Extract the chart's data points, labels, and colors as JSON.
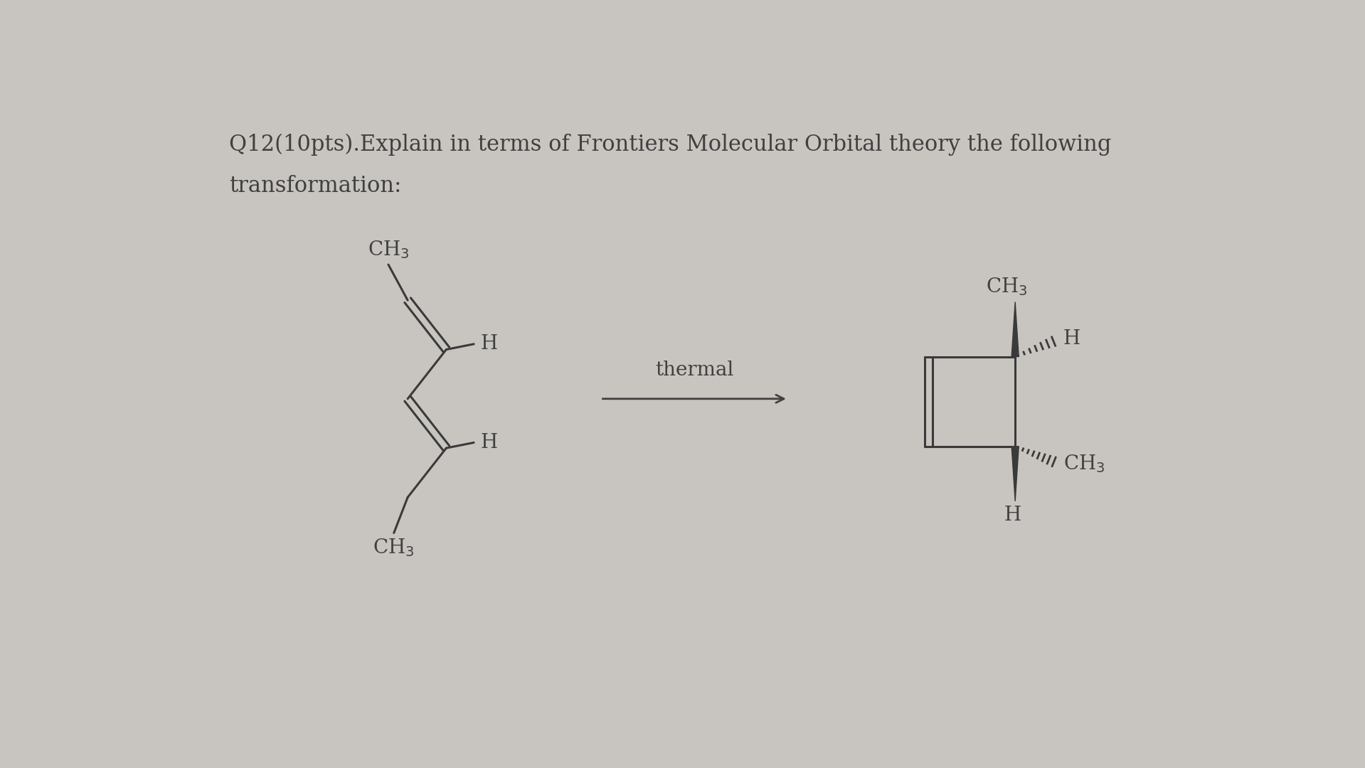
{
  "bg_color": "#c8c5c0",
  "text_color": "#404040",
  "title_line1": "Q12(10pts).Explain in terms of Frontiers Molecular Orbital theory the following",
  "title_line2": "transformation:",
  "title_fontsize": 22,
  "arrow_label": "thermal",
  "arrow_label_fontsize": 20,
  "line_color": "#3a3a3a",
  "line_width": 2.2,
  "font_label_size": 20
}
